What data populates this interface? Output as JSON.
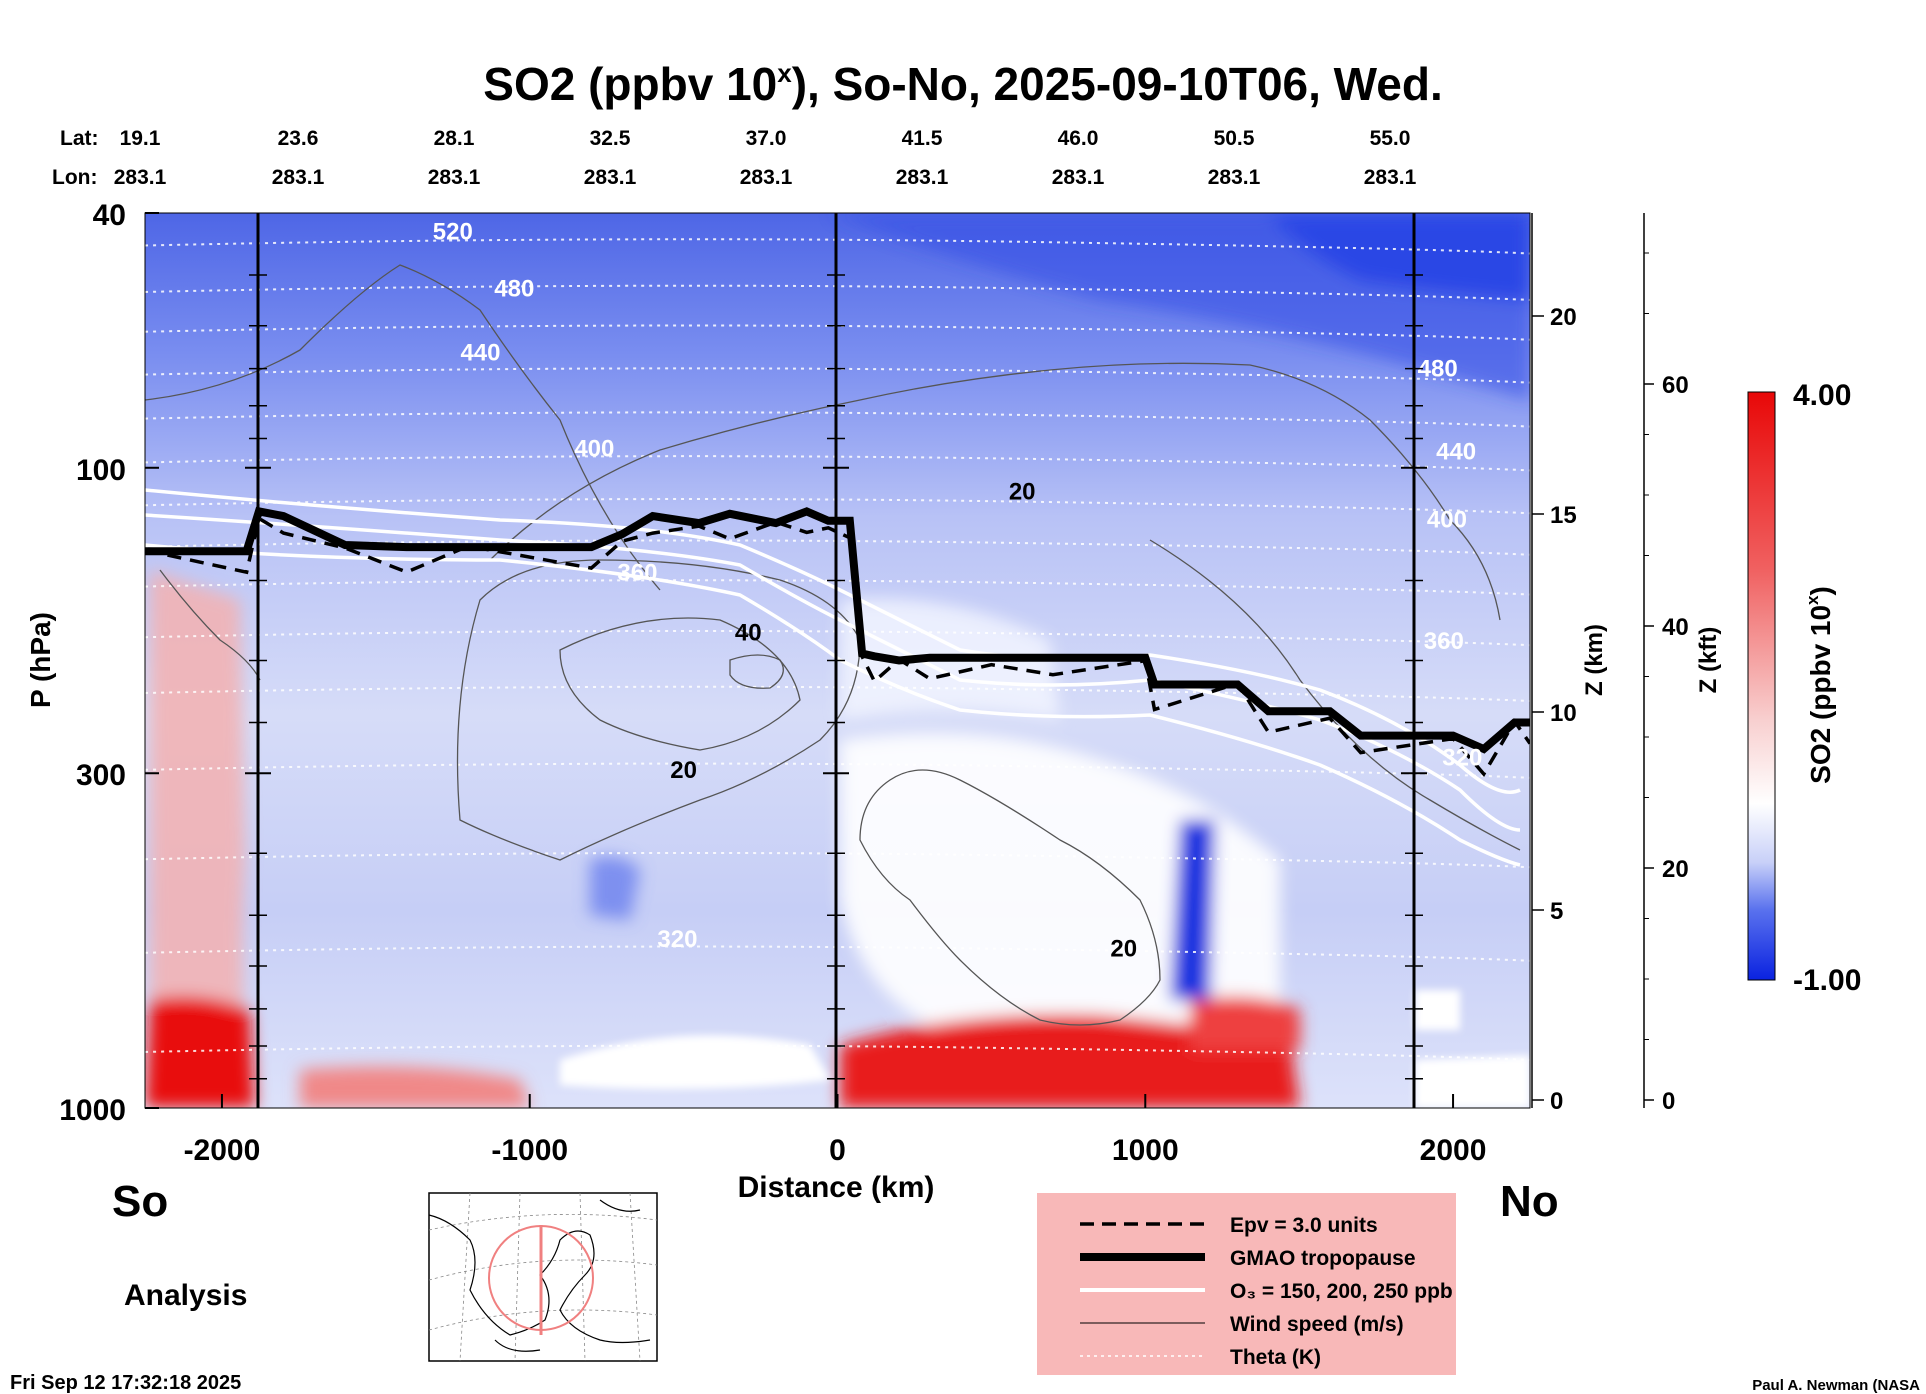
{
  "chart_data": {
    "type": "heatmap",
    "title_main": "SO2 (ppbv 10",
    "title_sup": "x",
    "title_rest": "), So-No, 2025-09-10T06, Wed.",
    "lat_label": "Lat:",
    "lon_label": "Lon:",
    "positions": [
      {
        "lat": "19.1",
        "lon": "283.1"
      },
      {
        "lat": "23.6",
        "lon": "283.1"
      },
      {
        "lat": "28.1",
        "lon": "283.1"
      },
      {
        "lat": "32.5",
        "lon": "283.1"
      },
      {
        "lat": "37.0",
        "lon": "283.1"
      },
      {
        "lat": "41.5",
        "lon": "283.1"
      },
      {
        "lat": "46.0",
        "lon": "283.1"
      },
      {
        "lat": "50.5",
        "lon": "283.1"
      },
      {
        "lat": "55.0",
        "lon": "283.1"
      }
    ],
    "xlabel": "Distance (km)",
    "xlim": [
      -2250,
      2250
    ],
    "xticks": [
      -2000,
      -1000,
      0,
      1000,
      2000
    ],
    "ylabel": "P (hPa)",
    "ylim": [
      1000,
      40
    ],
    "yscale": "log",
    "yticks": [
      40,
      100,
      300,
      1000
    ],
    "z_km_label": "Z (km)",
    "z_km_ticks": [
      0,
      5,
      10,
      15,
      20
    ],
    "z_kft_label": "Z (kft)",
    "z_kft_ticks": [
      0,
      20,
      40,
      60
    ],
    "colorbar_label": "SO2 (ppbv 10",
    "colorbar_sup": "x",
    "colorbar_range": [
      -1.0,
      4.0
    ],
    "colorbar_max_label": "4.00",
    "colorbar_min_label": "-1.00",
    "colors": {
      "low": "#0a22e0",
      "mid": "#ffffff",
      "high": "#e80808"
    },
    "theta_labels": [
      {
        "text": "520",
        "x": -1250,
        "p": 44
      },
      {
        "text": "480",
        "x": -1050,
        "p": 54
      },
      {
        "text": "440",
        "x": -1160,
        "p": 68
      },
      {
        "text": "400",
        "x": -790,
        "p": 96
      },
      {
        "text": "360",
        "x": -650,
        "p": 150
      },
      {
        "text": "320",
        "x": -520,
        "p": 560
      },
      {
        "text": "480",
        "x": 1950,
        "p": 72
      },
      {
        "text": "440",
        "x": 2010,
        "p": 97
      },
      {
        "text": "400",
        "x": 1980,
        "p": 124
      },
      {
        "text": "360",
        "x": 1970,
        "p": 192
      },
      {
        "text": "320",
        "x": 2030,
        "p": 292
      }
    ],
    "wind_labels": [
      {
        "text": "40",
        "x": -290,
        "p": 186
      },
      {
        "text": "20",
        "x": -500,
        "p": 305
      },
      {
        "text": "20",
        "x": 600,
        "p": 112
      },
      {
        "text": "20",
        "x": 930,
        "p": 580
      }
    ],
    "tropopause_pressure": {
      "x": [
        -2250,
        -1920,
        -1880,
        -1800,
        -1600,
        -1400,
        -1200,
        -800,
        -700,
        -600,
        -450,
        -350,
        -200,
        -100,
        -30,
        40,
        80,
        120,
        200,
        300,
        500,
        700,
        1000,
        1030,
        1300,
        1400,
        1600,
        1700,
        2000,
        2100,
        2200,
        2250
      ],
      "p": [
        135,
        135,
        117,
        119,
        132,
        133,
        133,
        133,
        127,
        119,
        122,
        118,
        122,
        117,
        121,
        121,
        195,
        197,
        200,
        198,
        198,
        198,
        198,
        218,
        218,
        240,
        240,
        262,
        262,
        275,
        250,
        250
      ]
    },
    "legend": [
      {
        "label": "Epv = 3.0 units",
        "style": "dashed"
      },
      {
        "label": "GMAO tropopause",
        "style": "thick"
      },
      {
        "label": "O₃ = 150, 200, 250 ppb",
        "style": "white"
      },
      {
        "label": "Wind speed (m/s)",
        "style": "thin"
      },
      {
        "label": "Theta (K)",
        "style": "dotted"
      }
    ],
    "legend_colors": {
      "background": "#f8b8b8"
    }
  },
  "labels": {
    "left_end": "So",
    "right_end": "No",
    "analysis": "Analysis",
    "timestamp": "Fri Sep 12 17:32:18 2025",
    "credit": "Paul A. Newman (NASA"
  }
}
